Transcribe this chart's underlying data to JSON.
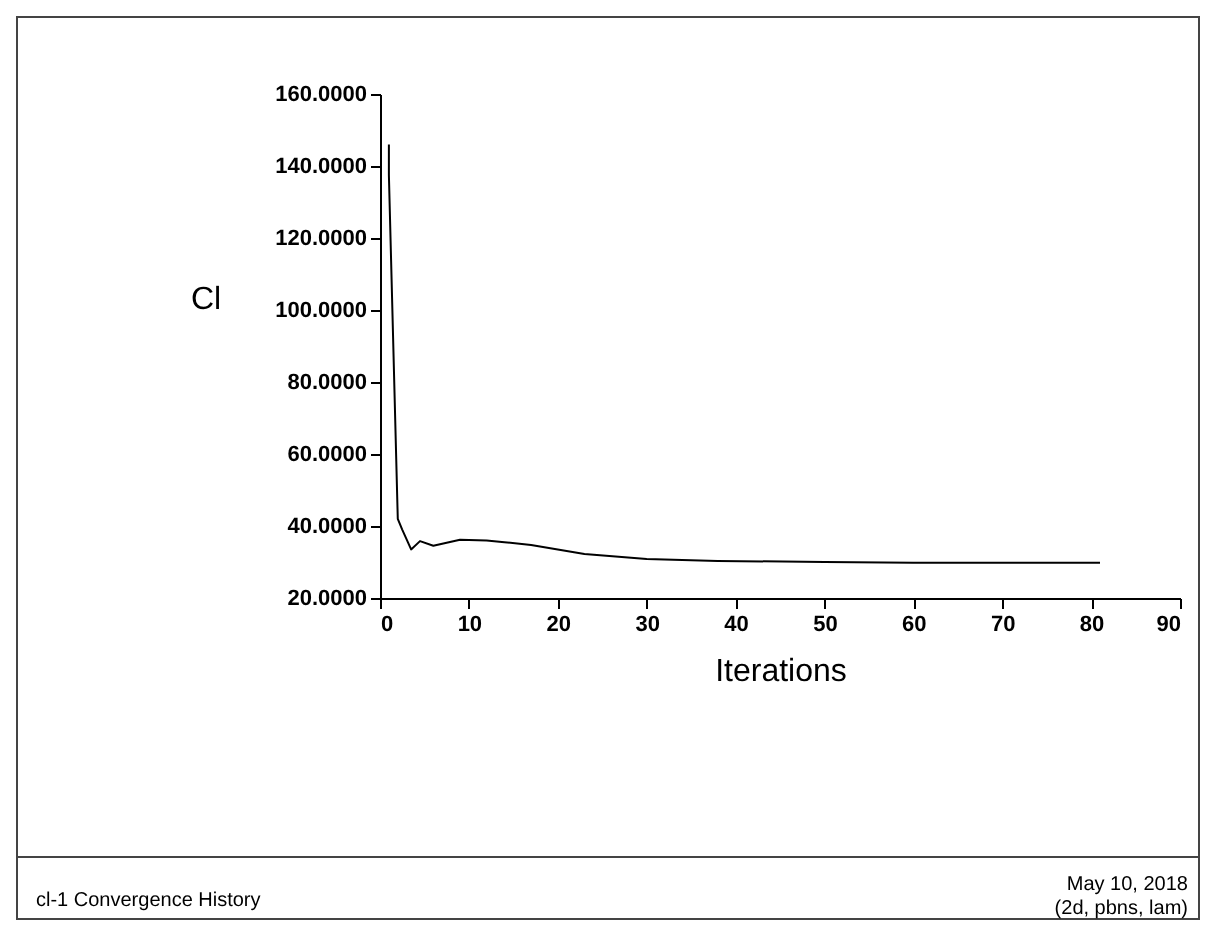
{
  "chart_data": {
    "type": "line",
    "xlabel": "Iterations",
    "ylabel": "Cl",
    "x": [
      1,
      1,
      2,
      2.5,
      3.5,
      4.5,
      6,
      9,
      12,
      14,
      17,
      23,
      30,
      38,
      50,
      60,
      70,
      81
    ],
    "series": [
      {
        "color": "#000000",
        "values": [
          146,
          137.5,
          42,
          39,
          33.5,
          35.8,
          34.5,
          36.2,
          36,
          35.5,
          34.7,
          32.2,
          30.8,
          30.3,
          30,
          29.8,
          29.8,
          29.8
        ]
      }
    ],
    "xlim": [
      0,
      90
    ],
    "xticks": [
      0,
      10,
      20,
      30,
      40,
      50,
      60,
      70,
      80,
      90
    ],
    "ylim": [
      20,
      160
    ],
    "yticks": [
      {
        "value": 20,
        "label": "20.0000"
      },
      {
        "value": 40,
        "label": "40.0000"
      },
      {
        "value": 60,
        "label": "60.0000"
      },
      {
        "value": 80,
        "label": "80.0000"
      },
      {
        "value": 100,
        "label": "100.0000"
      },
      {
        "value": 120,
        "label": "120.0000"
      },
      {
        "value": 140,
        "label": "140.0000"
      },
      {
        "value": 160,
        "label": "160.0000"
      }
    ],
    "grid": false,
    "annotations": [
      "cl-1 Convergence History",
      "May 10, 2018",
      "(2d, pbns, lam)"
    ]
  }
}
